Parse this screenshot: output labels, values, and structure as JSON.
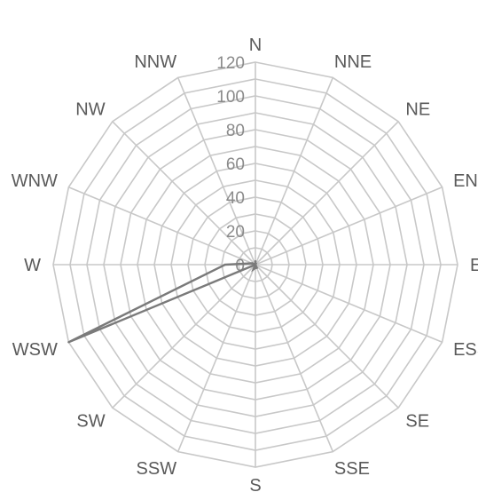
{
  "chart_data": {
    "type": "radar",
    "title": "",
    "categories": [
      "N",
      "NNE",
      "NE",
      "ENE",
      "E",
      "ESSE",
      "SE",
      "SSE",
      "S",
      "SSW",
      "SW",
      "WSW",
      "W",
      "WNW",
      "NW",
      "NNW"
    ],
    "radial_ticks": [
      "0",
      "20",
      "40",
      "60",
      "80",
      "100",
      "120"
    ],
    "rlim": [
      0,
      120
    ],
    "grid": true,
    "series": [
      {
        "values": [
          2,
          0,
          0,
          0,
          0,
          0,
          0,
          2,
          2,
          3,
          0,
          120,
          18,
          2,
          0,
          0
        ]
      }
    ],
    "colors": {
      "grid": "#c8c8c8",
      "series": "#7a7a7a",
      "label": "#5a5a5a"
    }
  }
}
